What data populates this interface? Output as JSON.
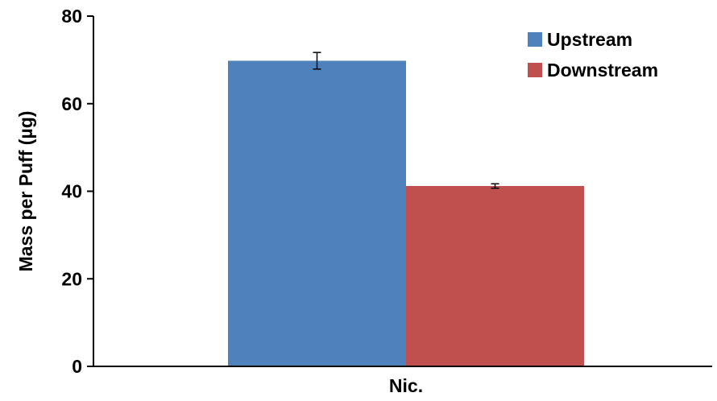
{
  "chart_data": {
    "type": "bar",
    "title": "",
    "xlabel": "Nic.",
    "ylabel": "Mass per Puff (µg)",
    "categories": [
      "Nic."
    ],
    "ylim": [
      0,
      80
    ],
    "yticks": [
      0,
      20,
      40,
      60,
      80
    ],
    "grid": false,
    "legend_position": "top-right",
    "series": [
      {
        "name": "Upstream",
        "values": [
          69.8
        ],
        "error": [
          1.9
        ],
        "color": "#4f81bd"
      },
      {
        "name": "Downstream",
        "values": [
          41.2
        ],
        "error": [
          0.5
        ],
        "color": "#c0504d"
      }
    ]
  }
}
